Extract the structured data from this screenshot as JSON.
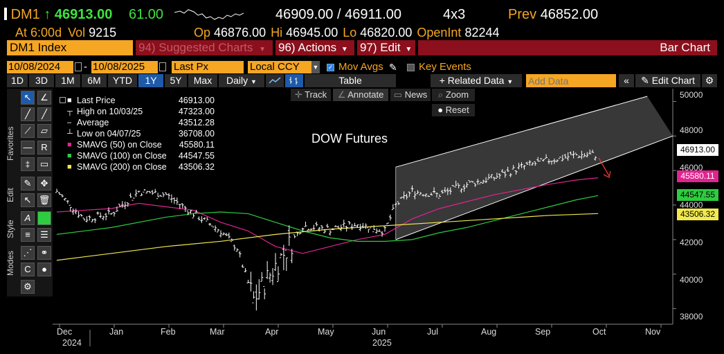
{
  "quote": {
    "ticker": "DM1",
    "up_arrow": "↑",
    "last": "46913.00",
    "change": "61.00",
    "bid_ask": "46909.00 / 46911.00",
    "size": "4x3",
    "prev_label": "Prev",
    "prev": "46852.00",
    "at_label": "At",
    "at_time": "6:00d",
    "vol_label": "Vol",
    "vol": "9215",
    "op_label": "Op",
    "op": "46876.00",
    "hi_label": "Hi",
    "hi": "46945.00",
    "lo_label": "Lo",
    "lo": "46820.00",
    "oi_label": "OpenInt",
    "oi": "82244"
  },
  "menubar": {
    "security": "DM1 Index",
    "suggested": "94) Suggested Charts",
    "actions": "96) Actions",
    "edit": "97) Edit",
    "chart_type": "Bar Chart"
  },
  "params": {
    "start_date": "10/08/2024",
    "end_date": "10/08/2025",
    "field": "Last Px",
    "currency": "Local CCY",
    "mov_avgs": "Mov Avgs",
    "key_events": "Key Events"
  },
  "toolbar": {
    "periods": [
      "1D",
      "3D",
      "1M",
      "6M",
      "YTD",
      "1Y",
      "5Y",
      "Max"
    ],
    "active_period": "1Y",
    "frequency": "Daily",
    "table": "Table",
    "related_data": "+ Related Data",
    "add_data_placeholder": "Add Data",
    "edit_chart": "Edit Chart"
  },
  "subtools": {
    "track": "Track",
    "annotate": "Annotate",
    "news": "News",
    "zoom": "Zoom",
    "reset": "Reset"
  },
  "side_tabs": {
    "favorites": "Favorites",
    "edit": "Edit",
    "style": "Style",
    "modes": "Modes"
  },
  "legend": [
    {
      "label": "Last Price",
      "value": "46913.00",
      "color": "#ffffff"
    },
    {
      "label": "High on 10/03/25",
      "value": "47323.00",
      "color": "#ffffff"
    },
    {
      "label": "Average",
      "value": "43512.28",
      "color": "#ffffff"
    },
    {
      "label": "Low on 04/07/25",
      "value": "36708.00",
      "color": "#ffffff"
    },
    {
      "label": "SMAVG (50)  on Close",
      "value": "45580.11",
      "color": "#e0248f"
    },
    {
      "label": "SMAVG (100)  on Close",
      "value": "44547.55",
      "color": "#2ecc40"
    },
    {
      "label": "SMAVG (200)  on Close",
      "value": "43506.32",
      "color": "#f2e94e"
    }
  ],
  "chart_data": {
    "type": "bar",
    "title": "DOW Futures",
    "ylim": [
      37500,
      50500
    ],
    "y_ticks": [
      "50000",
      "48000",
      "46000",
      "44000",
      "42000",
      "40000",
      "38000"
    ],
    "x_labels": [
      "Dec",
      "Jan",
      "Feb",
      "Mar",
      "Apr",
      "May",
      "Jun",
      "Jul",
      "Aug",
      "Sep",
      "Oct",
      "Nov"
    ],
    "year_labels": [
      "2024",
      "2025"
    ],
    "price_tags": [
      {
        "value": "46913.00",
        "color": "#ffffff",
        "text_color": "#000000"
      },
      {
        "value": "45580.11",
        "color": "#e0248f",
        "text_color": "#ffffff"
      },
      {
        "value": "44547.55",
        "color": "#2ecc40",
        "text_color": "#000000"
      },
      {
        "value": "43506.32",
        "color": "#f2e94e",
        "text_color": "#000000"
      }
    ],
    "series": [
      {
        "name": "Last Price",
        "color": "#ffffff",
        "months": [
          0,
          0.5,
          1,
          1.5,
          2,
          2.5,
          3,
          3.3,
          3.6,
          4,
          4.5,
          5,
          5.5,
          6,
          6.2,
          6.5,
          7,
          7.5,
          8,
          8.5,
          9,
          9.5,
          9.9
        ],
        "values": [
          44800,
          43200,
          43500,
          44800,
          44600,
          43500,
          42500,
          41500,
          38500,
          40500,
          42800,
          42600,
          42900,
          42500,
          44000,
          44800,
          44600,
          45200,
          45600,
          46200,
          46600,
          46900,
          46913
        ]
      },
      {
        "name": "SMAVG (50)",
        "color": "#e0248f",
        "months": [
          0,
          1,
          1.5,
          2,
          2.5,
          3,
          3.5,
          4,
          4.5,
          5,
          5.5,
          6,
          6.5,
          7,
          7.5,
          8,
          8.5,
          9,
          9.5,
          9.9
        ],
        "values": [
          43600,
          43800,
          44100,
          43900,
          43700,
          43000,
          42500,
          41600,
          41200,
          41600,
          42000,
          42300,
          43200,
          43800,
          44200,
          44600,
          44900,
          45200,
          45450,
          45580
        ]
      },
      {
        "name": "SMAVG (100)",
        "color": "#2ecc40",
        "months": [
          0,
          1,
          2,
          2.5,
          3,
          3.5,
          4,
          4.5,
          5,
          5.5,
          6,
          6.5,
          7,
          7.5,
          8,
          8.5,
          9,
          9.5,
          9.9
        ],
        "values": [
          42300,
          42700,
          43300,
          43500,
          43600,
          43500,
          43000,
          42500,
          42100,
          41900,
          41900,
          42000,
          42400,
          42700,
          43100,
          43500,
          43900,
          44300,
          44548
        ]
      },
      {
        "name": "SMAVG (200)",
        "color": "#f2e94e",
        "months": [
          0,
          1,
          2,
          3,
          4,
          5,
          6,
          7,
          8,
          9,
          9.9
        ],
        "values": [
          40800,
          41200,
          41600,
          41900,
          42300,
          42600,
          42800,
          43000,
          43200,
          43400,
          43506
        ]
      }
    ]
  }
}
